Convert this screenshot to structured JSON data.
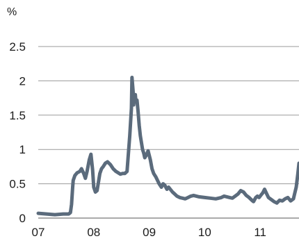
{
  "chart_data": {
    "type": "line",
    "title": "",
    "ylabel": "%",
    "xlabel": "",
    "ylim": [
      0,
      2.5
    ],
    "xlim": [
      2007.0,
      2011.7
    ],
    "y_ticks": [
      {
        "value": 0,
        "label": "0"
      },
      {
        "value": 0.5,
        "label": "0.5"
      },
      {
        "value": 1,
        "label": "1"
      },
      {
        "value": 1.5,
        "label": "1.5"
      },
      {
        "value": 2,
        "label": "2"
      },
      {
        "value": 2.5,
        "label": "2.5"
      }
    ],
    "x_ticks": [
      {
        "value": 2007,
        "label": "07"
      },
      {
        "value": 2008,
        "label": "08"
      },
      {
        "value": 2009,
        "label": "09"
      },
      {
        "value": 2010,
        "label": "10"
      },
      {
        "value": 2011,
        "label": "11"
      }
    ],
    "grid": "horizontal",
    "line_color": "#5b6b7c",
    "series": [
      {
        "x": [
          2007.0,
          2007.15,
          2007.3,
          2007.45,
          2007.55,
          2007.58,
          2007.6,
          2007.62,
          2007.63,
          2007.66,
          2007.7,
          2007.75,
          2007.78,
          2007.82,
          2007.85,
          2007.88,
          2007.92,
          2007.95,
          2007.98,
          2008.0,
          2008.03,
          2008.06,
          2008.08,
          2008.11,
          2008.14,
          2008.17,
          2008.21,
          2008.25,
          2008.3,
          2008.35,
          2008.4,
          2008.44,
          2008.48,
          2008.52,
          2008.56,
          2008.6,
          2008.65,
          2008.68,
          2008.69,
          2008.71,
          2008.72,
          2008.73,
          2008.75,
          2008.76,
          2008.78,
          2008.8,
          2008.82,
          2008.84,
          2008.86,
          2008.88,
          2008.9,
          2008.92,
          2008.95,
          2008.98,
          2009.02,
          2009.05,
          2009.08,
          2009.12,
          2009.15,
          2009.18,
          2009.22,
          2009.25,
          2009.28,
          2009.32,
          2009.35,
          2009.38,
          2009.42,
          2009.46,
          2009.5,
          2009.55,
          2009.6,
          2009.65,
          2009.7,
          2009.75,
          2009.8,
          2009.9,
          2010.0,
          2010.1,
          2010.2,
          2010.3,
          2010.35,
          2010.4,
          2010.45,
          2010.5,
          2010.55,
          2010.6,
          2010.65,
          2010.7,
          2010.75,
          2010.8,
          2010.85,
          2010.88,
          2010.92,
          2010.95,
          2010.98,
          2011.02,
          2011.05,
          2011.08,
          2011.12,
          2011.15,
          2011.2,
          2011.25,
          2011.3,
          2011.35,
          2011.4,
          2011.45,
          2011.5,
          2011.55,
          2011.6,
          2011.62,
          2011.65,
          2011.68,
          2011.7
        ],
        "y": [
          0.07,
          0.06,
          0.05,
          0.06,
          0.06,
          0.08,
          0.2,
          0.45,
          0.55,
          0.62,
          0.66,
          0.68,
          0.72,
          0.65,
          0.58,
          0.68,
          0.85,
          0.93,
          0.7,
          0.45,
          0.38,
          0.4,
          0.5,
          0.65,
          0.72,
          0.75,
          0.8,
          0.82,
          0.78,
          0.72,
          0.68,
          0.66,
          0.64,
          0.65,
          0.65,
          0.68,
          1.2,
          1.6,
          2.05,
          1.85,
          1.65,
          1.75,
          1.8,
          1.7,
          1.72,
          1.55,
          1.35,
          1.2,
          1.1,
          1.0,
          0.95,
          0.88,
          0.92,
          0.98,
          0.85,
          0.72,
          0.65,
          0.6,
          0.55,
          0.5,
          0.45,
          0.5,
          0.48,
          0.42,
          0.45,
          0.42,
          0.38,
          0.35,
          0.32,
          0.3,
          0.29,
          0.28,
          0.3,
          0.32,
          0.33,
          0.31,
          0.3,
          0.29,
          0.28,
          0.3,
          0.32,
          0.31,
          0.3,
          0.29,
          0.32,
          0.35,
          0.4,
          0.38,
          0.33,
          0.3,
          0.26,
          0.24,
          0.3,
          0.32,
          0.3,
          0.34,
          0.37,
          0.42,
          0.35,
          0.3,
          0.27,
          0.24,
          0.22,
          0.26,
          0.25,
          0.28,
          0.3,
          0.25,
          0.28,
          0.35,
          0.45,
          0.65,
          0.8
        ]
      }
    ]
  }
}
